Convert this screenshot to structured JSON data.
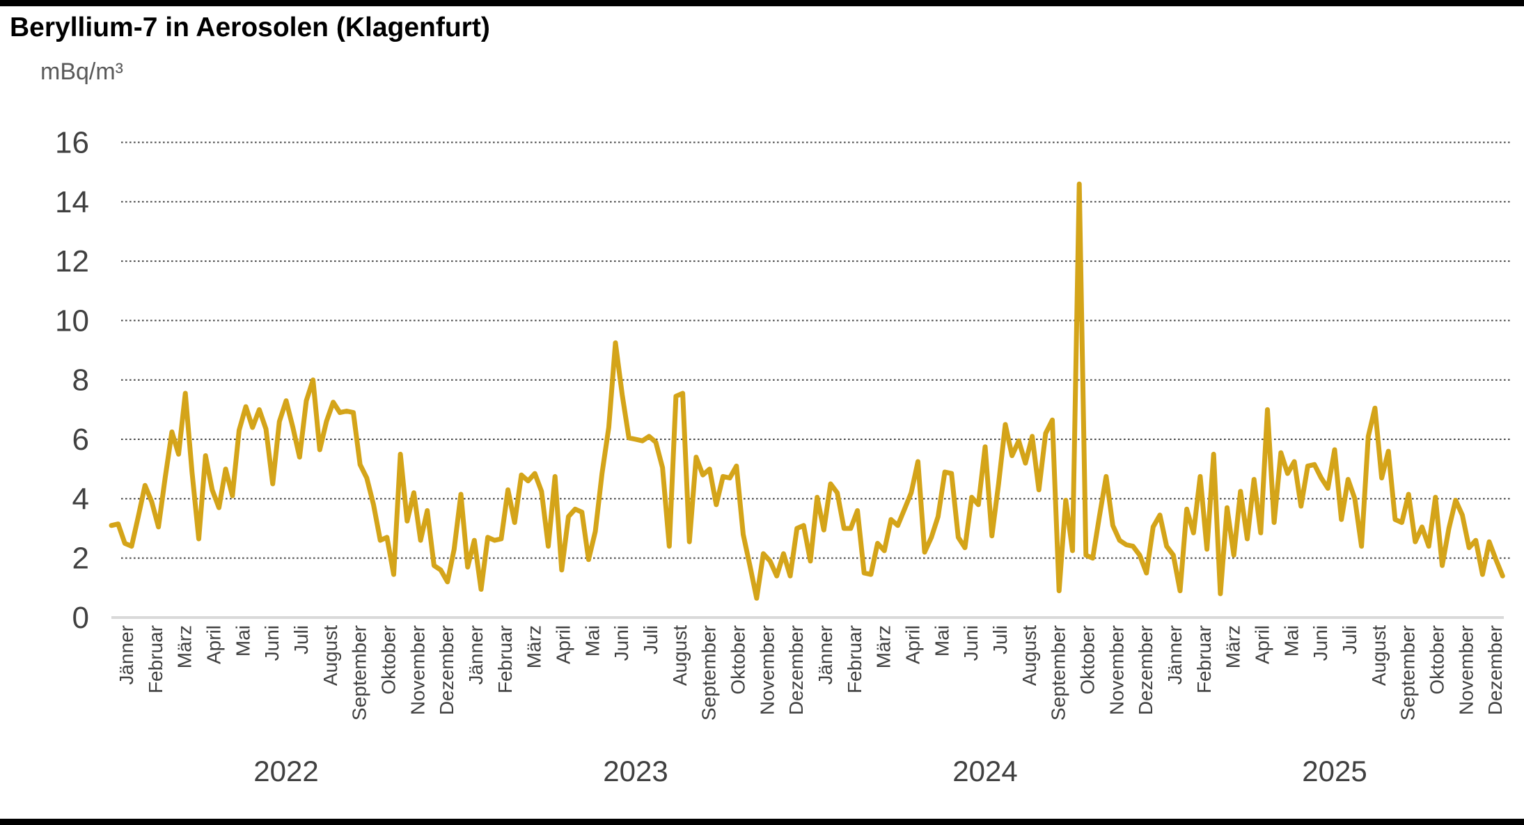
{
  "page": {
    "title": "Beryllium-7 in Aerosolen (Klagenfurt)",
    "unit_label": "mBq/m³"
  },
  "chart_data": {
    "type": "line",
    "title": "Beryllium-7 in Aerosolen (Klagenfurt)",
    "ylabel": "mBq/m³",
    "xlabel": "",
    "ylim": [
      0,
      16
    ],
    "yticks": [
      16,
      14,
      12,
      10,
      8,
      6,
      4,
      2,
      0
    ],
    "grid": "horizontal-dotted",
    "legend": "none",
    "sampling": "weekly",
    "line_color": "#D4A419",
    "axis_text_color": "#404040",
    "baseline_color": "#D9D9D9",
    "gridline_color": "#474747",
    "months": [
      "Jänner",
      "Februar",
      "März",
      "April",
      "Mai",
      "Juni",
      "Juli",
      "August",
      "September",
      "Oktober",
      "November",
      "Dezember"
    ],
    "years": [
      "2022",
      "2023",
      "2024",
      "2025"
    ],
    "series": [
      {
        "name": "Beryllium-7",
        "year_values": {
          "2022": [
            3.1,
            3.15,
            2.5,
            2.4,
            3.4,
            4.45,
            3.9,
            3.05,
            4.7,
            6.25,
            5.5,
            7.55,
            4.9,
            2.65,
            5.45,
            4.3,
            3.7,
            5.0,
            4.1,
            6.3,
            7.1,
            6.4,
            7.0,
            6.35,
            4.5,
            6.6,
            7.3,
            6.4,
            5.4,
            7.3,
            8.0,
            5.65,
            6.6,
            7.25,
            6.9,
            6.95,
            6.9,
            5.15,
            4.7,
            3.8,
            2.6,
            2.7,
            1.45,
            5.5,
            3.25,
            4.2,
            2.6,
            3.6,
            1.75,
            1.6,
            1.2,
            2.3
          ],
          "2023": [
            4.15,
            1.7,
            2.6,
            0.95,
            2.7,
            2.6,
            2.65,
            4.3,
            3.2,
            4.8,
            4.6,
            4.85,
            4.25,
            2.4,
            4.75,
            1.6,
            3.4,
            3.65,
            3.55,
            1.95,
            2.9,
            4.85,
            6.4,
            9.25,
            7.5,
            6.05,
            6.0,
            5.95,
            6.1,
            5.9,
            5.05,
            2.4,
            7.45,
            7.55,
            2.55,
            5.4,
            4.8,
            5.0,
            3.8,
            4.75,
            4.7,
            5.1,
            2.8,
            1.75,
            0.65,
            2.15,
            1.9,
            1.4,
            2.15,
            1.4,
            3.0,
            3.1
          ],
          "2024": [
            1.9,
            4.05,
            2.95,
            4.5,
            4.2,
            3.0,
            3.0,
            3.6,
            1.5,
            1.45,
            2.5,
            2.25,
            3.3,
            3.1,
            3.65,
            4.2,
            5.25,
            2.2,
            2.7,
            3.4,
            4.9,
            4.85,
            2.7,
            2.35,
            4.05,
            3.8,
            5.75,
            2.75,
            4.5,
            6.5,
            5.45,
            5.95,
            5.2,
            6.1,
            4.3,
            6.2,
            6.65,
            0.9,
            3.95,
            2.25,
            14.6,
            2.1,
            2.0,
            3.4,
            4.75,
            3.1,
            2.6,
            2.45,
            2.4,
            2.1,
            1.5,
            3.05
          ],
          "2025": [
            3.45,
            2.4,
            2.1,
            0.9,
            3.65,
            2.85,
            4.75,
            2.3,
            5.5,
            0.8,
            3.7,
            2.1,
            4.25,
            2.65,
            4.65,
            2.85,
            7.0,
            3.2,
            5.55,
            4.85,
            5.25,
            3.75,
            5.1,
            5.15,
            4.7,
            4.35,
            5.65,
            3.3,
            4.65,
            4.0,
            2.4,
            6.1,
            7.05,
            4.7,
            5.6,
            3.3,
            3.2,
            4.15,
            2.55,
            3.05,
            2.4,
            4.05,
            1.75,
            3.0,
            3.95,
            3.45,
            2.35,
            2.6,
            1.45,
            2.55,
            1.95,
            1.4
          ]
        }
      }
    ]
  }
}
